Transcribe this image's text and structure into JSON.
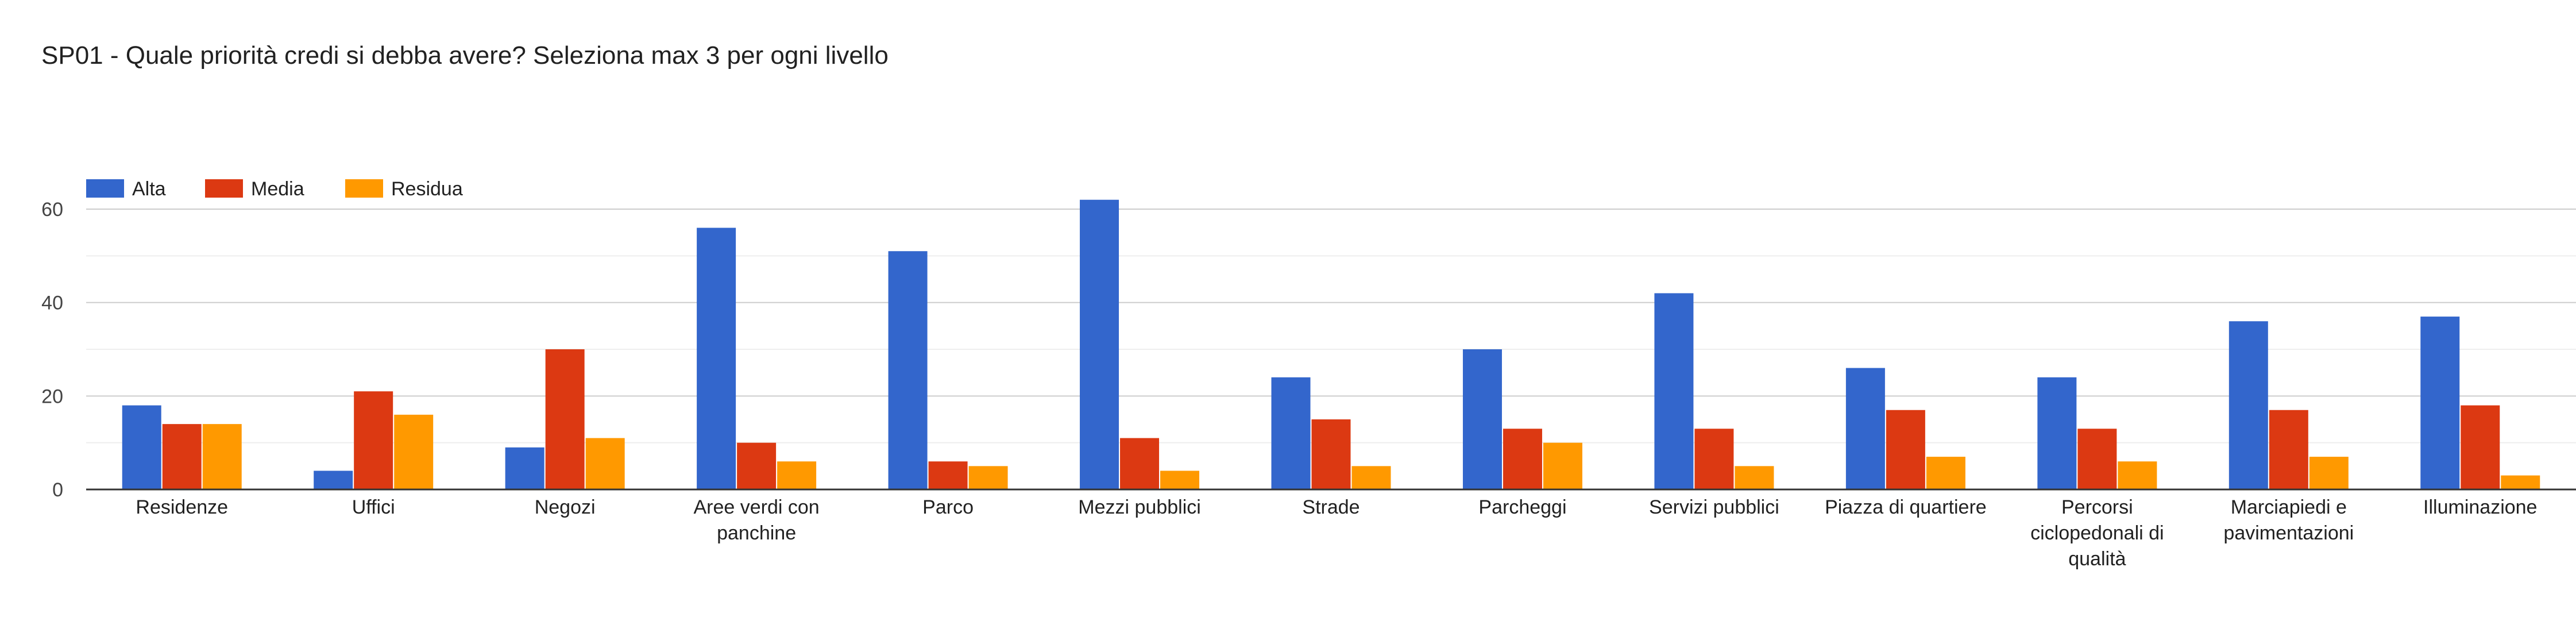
{
  "chart_data": {
    "type": "bar",
    "title": "SP01 - Quale priorità credi si debba avere?  Seleziona max 3 per ogni livello",
    "xlabel": "",
    "ylabel": "",
    "ylim": [
      0,
      60
    ],
    "yticks": [
      0,
      20,
      40,
      60
    ],
    "grid": true,
    "legend_position": "top-left",
    "categories": [
      "Residenze",
      "Uffici",
      "Negozi",
      "Aree verdi con panchine",
      "Parco",
      "Mezzi pubblici",
      "Strade",
      "Parcheggi",
      "Servizi pubblici",
      "Piazza di quartiere",
      "Percorsi ciclopedonali di qualità",
      "Marciapiedi e pavimentazioni",
      "Illuminazione"
    ],
    "series": [
      {
        "name": "Alta",
        "color": "#3366cc",
        "values": [
          18,
          4,
          9,
          56,
          51,
          62,
          24,
          30,
          42,
          26,
          24,
          36,
          37
        ]
      },
      {
        "name": "Media",
        "color": "#dc3912",
        "values": [
          14,
          21,
          30,
          10,
          6,
          11,
          15,
          13,
          13,
          17,
          13,
          17,
          18
        ]
      },
      {
        "name": "Residua",
        "color": "#ff9900",
        "values": [
          14,
          16,
          11,
          6,
          5,
          4,
          5,
          10,
          5,
          7,
          6,
          7,
          3
        ]
      }
    ]
  }
}
